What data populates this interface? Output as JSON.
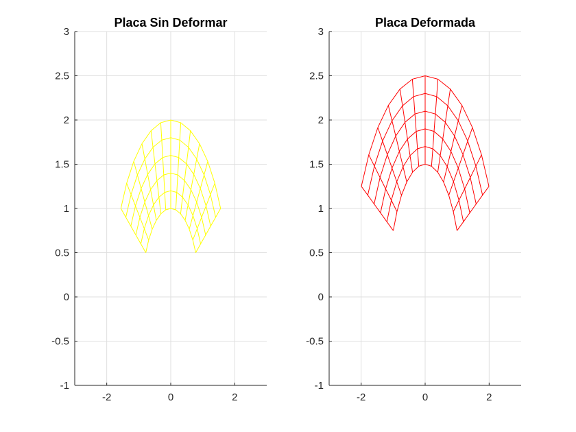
{
  "chart_data": [
    {
      "type": "line",
      "title": "Placa Sin Deformar",
      "xlim": [
        -3,
        3
      ],
      "ylim": [
        -1,
        3
      ],
      "xticks": [
        -2,
        0,
        2
      ],
      "yticks": [
        -1,
        -0.5,
        0,
        0.5,
        1,
        1.5,
        2,
        2.5,
        3
      ],
      "xtick_labels": [
        "-2",
        "0",
        "2"
      ],
      "ytick_labels": [
        "-1",
        "-0.5",
        "0",
        "0.5",
        "1",
        "1.5",
        "2",
        "2.5",
        "3"
      ],
      "grid": true,
      "color": "#ffff00",
      "mesh": {
        "inner_radius": 1.0,
        "outer_radius": 2.0,
        "radial_divisions": 5,
        "angle_start_deg": 0,
        "angle_end_deg": 60,
        "angular_divisions": 6,
        "x_scale": 0.9,
        "center": [
          0,
          0
        ]
      }
    },
    {
      "type": "line",
      "title": "Placa Deformada",
      "xlim": [
        -3,
        3
      ],
      "ylim": [
        -1,
        3
      ],
      "xticks": [
        -2,
        0,
        2
      ],
      "yticks": [
        -1,
        -0.5,
        0,
        0.5,
        1,
        1.5,
        2,
        2.5,
        3
      ],
      "xtick_labels": [
        "-2",
        "0",
        "2"
      ],
      "ytick_labels": [
        "-1",
        "-0.5",
        "0",
        "0.5",
        "1",
        "1.5",
        "2",
        "2.5",
        "3"
      ],
      "grid": true,
      "color": "#ff0000",
      "mesh": {
        "inner_radius": 1.0,
        "outer_radius": 2.0,
        "radial_divisions": 5,
        "angle_start_deg": 0,
        "angle_end_deg": 60,
        "angular_divisions": 6,
        "x_scale": 1.15,
        "y_scale_base": 1.0,
        "vertical_shift_top": 0.5,
        "center": [
          0,
          0
        ]
      }
    }
  ]
}
